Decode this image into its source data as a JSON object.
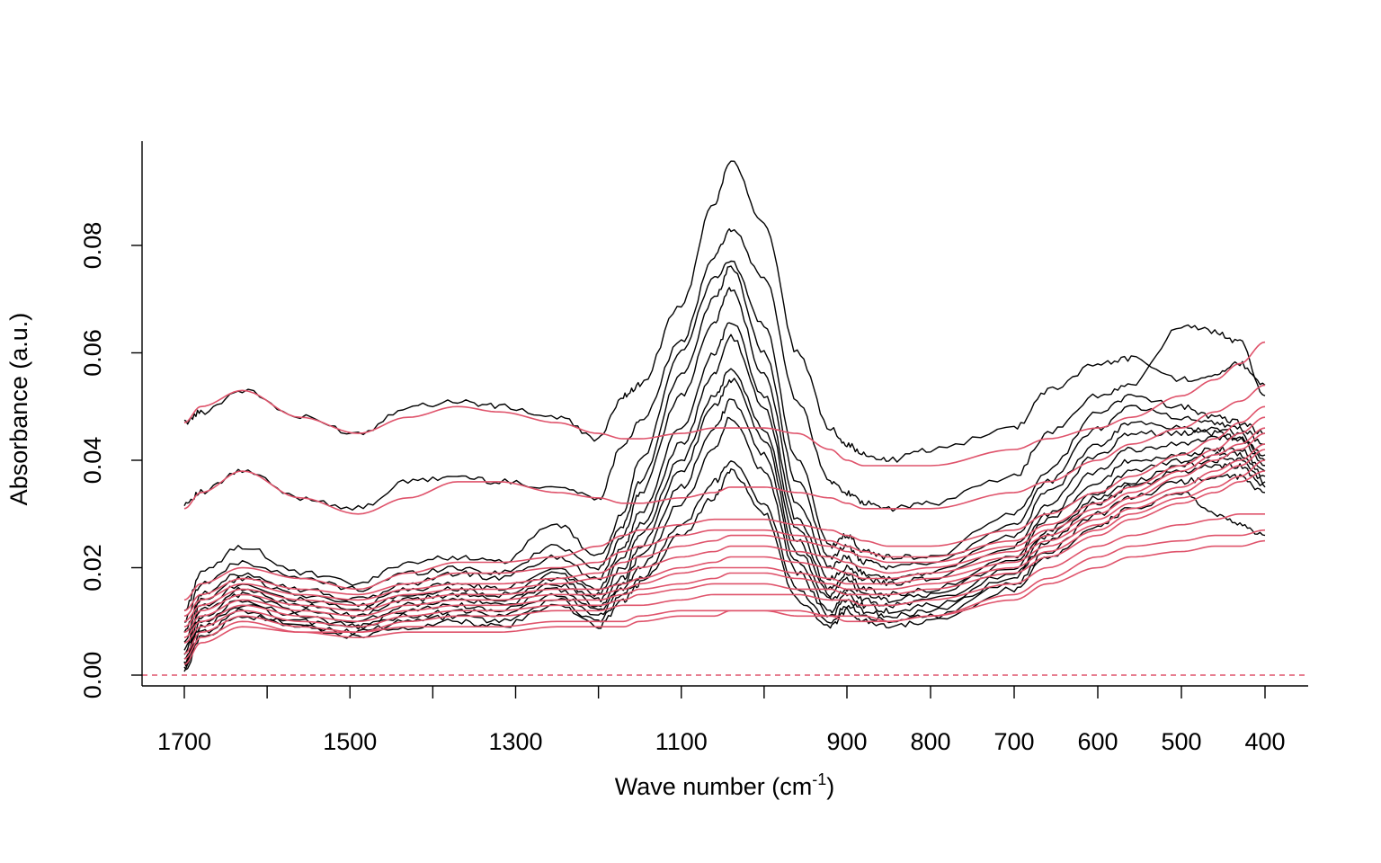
{
  "chart_data": {
    "type": "line",
    "xlabel": {
      "main": "Wave number (cm",
      "sup": "-1",
      "close": ")"
    },
    "ylabel": "Absorbance (a.u.)",
    "x_reversed": true,
    "x_axis_segments": "piecewise: 1700–900 and 900–400 drawn at different scales",
    "xlim": [
      1700,
      400
    ],
    "ylim": [
      0,
      0.097
    ],
    "x_ticks": [
      1700,
      1500,
      1300,
      1100,
      900,
      800,
      700,
      600,
      500,
      400
    ],
    "x_tick_labels": [
      "1700",
      "1500",
      "1300",
      "1100",
      "900",
      "800",
      "700",
      "600",
      "500",
      "400"
    ],
    "x_minor_ticks": [
      1600,
      1400,
      1200,
      1000
    ],
    "y_ticks": [
      0.0,
      0.02,
      0.04,
      0.06,
      0.08
    ],
    "y_tick_labels": [
      "0.00",
      "0.02",
      "0.04",
      "0.06",
      "0.08"
    ],
    "reference_line": {
      "y": 0.0,
      "style": "dashed",
      "color": "#DF536B"
    },
    "colors": {
      "spectra": "#000000",
      "baselines": "#DF536B"
    },
    "anchor_x": [
      1700,
      1680,
      1630,
      1560,
      1490,
      1430,
      1370,
      1320,
      1250,
      1200,
      1170,
      1150,
      1100,
      1060,
      1040,
      1000,
      960,
      920,
      900,
      880,
      850,
      800,
      700,
      660,
      600,
      560,
      500,
      460,
      430,
      400
    ],
    "series_spectra": [
      {
        "values": [
          0.047,
          0.049,
          0.053,
          0.048,
          0.045,
          0.05,
          0.051,
          0.05,
          0.048,
          0.044,
          0.052,
          0.054,
          0.069,
          0.088,
          0.096,
          0.084,
          0.06,
          0.046,
          0.043,
          0.041,
          0.04,
          0.042,
          0.046,
          0.053,
          0.058,
          0.059,
          0.055,
          0.056,
          0.058,
          0.054
        ]
      },
      {
        "values": [
          0.032,
          0.034,
          0.038,
          0.033,
          0.031,
          0.036,
          0.037,
          0.036,
          0.035,
          0.033,
          0.043,
          0.047,
          0.062,
          0.078,
          0.083,
          0.074,
          0.051,
          0.036,
          0.034,
          0.032,
          0.031,
          0.032,
          0.037,
          0.045,
          0.052,
          0.054,
          0.065,
          0.064,
          0.062,
          0.052
        ]
      },
      {
        "values": [
          0.012,
          0.019,
          0.024,
          0.019,
          0.017,
          0.021,
          0.022,
          0.021,
          0.028,
          0.022,
          0.03,
          0.04,
          0.06,
          0.074,
          0.077,
          0.065,
          0.04,
          0.024,
          0.026,
          0.023,
          0.022,
          0.022,
          0.03,
          0.038,
          0.049,
          0.052,
          0.05,
          0.048,
          0.047,
          0.045
        ]
      },
      {
        "values": [
          0.01,
          0.017,
          0.021,
          0.018,
          0.016,
          0.019,
          0.02,
          0.019,
          0.024,
          0.02,
          0.028,
          0.036,
          0.056,
          0.07,
          0.076,
          0.06,
          0.036,
          0.022,
          0.024,
          0.021,
          0.02,
          0.021,
          0.028,
          0.036,
          0.046,
          0.05,
          0.048,
          0.047,
          0.046,
          0.043
        ]
      },
      {
        "values": [
          0.008,
          0.015,
          0.019,
          0.016,
          0.014,
          0.017,
          0.019,
          0.018,
          0.022,
          0.018,
          0.026,
          0.034,
          0.052,
          0.066,
          0.072,
          0.056,
          0.032,
          0.02,
          0.022,
          0.019,
          0.018,
          0.019,
          0.026,
          0.034,
          0.043,
          0.047,
          0.046,
          0.045,
          0.044,
          0.041
        ]
      },
      {
        "values": [
          0.006,
          0.014,
          0.018,
          0.015,
          0.013,
          0.016,
          0.017,
          0.016,
          0.02,
          0.016,
          0.024,
          0.03,
          0.046,
          0.06,
          0.066,
          0.052,
          0.029,
          0.018,
          0.02,
          0.018,
          0.017,
          0.018,
          0.024,
          0.032,
          0.041,
          0.045,
          0.045,
          0.046,
          0.045,
          0.04
        ]
      },
      {
        "values": [
          0.005,
          0.013,
          0.017,
          0.014,
          0.012,
          0.015,
          0.016,
          0.015,
          0.019,
          0.015,
          0.022,
          0.028,
          0.043,
          0.056,
          0.063,
          0.05,
          0.027,
          0.016,
          0.019,
          0.016,
          0.015,
          0.016,
          0.022,
          0.03,
          0.038,
          0.042,
          0.043,
          0.044,
          0.044,
          0.039
        ]
      },
      {
        "values": [
          0.004,
          0.012,
          0.016,
          0.013,
          0.011,
          0.014,
          0.015,
          0.014,
          0.018,
          0.014,
          0.02,
          0.026,
          0.04,
          0.052,
          0.057,
          0.046,
          0.025,
          0.015,
          0.018,
          0.015,
          0.014,
          0.015,
          0.021,
          0.029,
          0.036,
          0.04,
          0.041,
          0.042,
          0.042,
          0.038
        ]
      },
      {
        "values": [
          0.003,
          0.011,
          0.015,
          0.012,
          0.01,
          0.013,
          0.014,
          0.013,
          0.017,
          0.013,
          0.018,
          0.024,
          0.038,
          0.05,
          0.055,
          0.044,
          0.023,
          0.014,
          0.016,
          0.014,
          0.013,
          0.014,
          0.02,
          0.027,
          0.034,
          0.038,
          0.04,
          0.041,
          0.041,
          0.037
        ]
      },
      {
        "values": [
          0.002,
          0.01,
          0.014,
          0.011,
          0.009,
          0.012,
          0.013,
          0.012,
          0.016,
          0.012,
          0.017,
          0.022,
          0.035,
          0.046,
          0.051,
          0.041,
          0.021,
          0.012,
          0.015,
          0.013,
          0.012,
          0.013,
          0.019,
          0.026,
          0.033,
          0.036,
          0.039,
          0.04,
          0.04,
          0.036
        ]
      },
      {
        "values": [
          0.002,
          0.009,
          0.013,
          0.01,
          0.009,
          0.011,
          0.012,
          0.011,
          0.015,
          0.011,
          0.016,
          0.02,
          0.032,
          0.042,
          0.048,
          0.038,
          0.019,
          0.011,
          0.014,
          0.012,
          0.011,
          0.012,
          0.018,
          0.025,
          0.032,
          0.035,
          0.038,
          0.039,
          0.039,
          0.035
        ]
      },
      {
        "values": [
          0.001,
          0.008,
          0.012,
          0.009,
          0.008,
          0.01,
          0.011,
          0.01,
          0.014,
          0.01,
          0.015,
          0.018,
          0.028,
          0.036,
          0.04,
          0.032,
          0.016,
          0.01,
          0.013,
          0.011,
          0.01,
          0.011,
          0.017,
          0.023,
          0.03,
          0.033,
          0.036,
          0.037,
          0.037,
          0.034
        ]
      },
      {
        "values": [
          0.001,
          0.007,
          0.011,
          0.009,
          0.007,
          0.009,
          0.01,
          0.009,
          0.013,
          0.009,
          0.014,
          0.017,
          0.026,
          0.033,
          0.038,
          0.03,
          0.014,
          0.009,
          0.012,
          0.01,
          0.009,
          0.01,
          0.016,
          0.022,
          0.028,
          0.031,
          0.034,
          0.03,
          0.028,
          0.026
        ]
      }
    ],
    "series_baselines": [
      {
        "values": [
          0.047,
          0.05,
          0.053,
          0.048,
          0.045,
          0.048,
          0.05,
          0.049,
          0.047,
          0.045,
          0.044,
          0.044,
          0.045,
          0.046,
          0.046,
          0.046,
          0.045,
          0.042,
          0.04,
          0.039,
          0.039,
          0.039,
          0.042,
          0.044,
          0.046,
          0.048,
          0.052,
          0.055,
          0.058,
          0.062
        ]
      },
      {
        "values": [
          0.031,
          0.034,
          0.038,
          0.033,
          0.03,
          0.033,
          0.036,
          0.036,
          0.034,
          0.033,
          0.032,
          0.032,
          0.033,
          0.034,
          0.035,
          0.035,
          0.034,
          0.033,
          0.032,
          0.031,
          0.031,
          0.031,
          0.034,
          0.036,
          0.04,
          0.043,
          0.046,
          0.049,
          0.051,
          0.054
        ]
      },
      {
        "values": [
          0.014,
          0.017,
          0.02,
          0.018,
          0.016,
          0.019,
          0.021,
          0.021,
          0.022,
          0.024,
          0.026,
          0.027,
          0.028,
          0.029,
          0.029,
          0.029,
          0.028,
          0.027,
          0.026,
          0.025,
          0.024,
          0.024,
          0.027,
          0.03,
          0.034,
          0.037,
          0.041,
          0.044,
          0.047,
          0.05
        ]
      },
      {
        "values": [
          0.012,
          0.015,
          0.018,
          0.016,
          0.015,
          0.017,
          0.019,
          0.019,
          0.02,
          0.021,
          0.023,
          0.024,
          0.026,
          0.027,
          0.027,
          0.027,
          0.026,
          0.025,
          0.024,
          0.023,
          0.022,
          0.022,
          0.025,
          0.028,
          0.032,
          0.035,
          0.039,
          0.042,
          0.045,
          0.048
        ]
      },
      {
        "values": [
          0.011,
          0.014,
          0.017,
          0.015,
          0.014,
          0.016,
          0.017,
          0.017,
          0.018,
          0.019,
          0.021,
          0.022,
          0.024,
          0.025,
          0.026,
          0.026,
          0.025,
          0.024,
          0.023,
          0.022,
          0.021,
          0.021,
          0.024,
          0.027,
          0.031,
          0.034,
          0.038,
          0.041,
          0.043,
          0.046
        ]
      },
      {
        "values": [
          0.01,
          0.013,
          0.016,
          0.014,
          0.013,
          0.015,
          0.016,
          0.016,
          0.017,
          0.018,
          0.019,
          0.02,
          0.022,
          0.023,
          0.024,
          0.024,
          0.023,
          0.022,
          0.021,
          0.02,
          0.019,
          0.02,
          0.023,
          0.026,
          0.03,
          0.033,
          0.037,
          0.04,
          0.042,
          0.045
        ]
      },
      {
        "values": [
          0.009,
          0.012,
          0.015,
          0.013,
          0.012,
          0.014,
          0.015,
          0.015,
          0.016,
          0.016,
          0.017,
          0.018,
          0.02,
          0.021,
          0.022,
          0.022,
          0.021,
          0.02,
          0.019,
          0.018,
          0.018,
          0.019,
          0.022,
          0.025,
          0.029,
          0.032,
          0.035,
          0.038,
          0.04,
          0.043
        ]
      },
      {
        "values": [
          0.008,
          0.011,
          0.014,
          0.012,
          0.011,
          0.013,
          0.014,
          0.014,
          0.015,
          0.015,
          0.016,
          0.017,
          0.019,
          0.02,
          0.02,
          0.02,
          0.019,
          0.018,
          0.017,
          0.017,
          0.017,
          0.018,
          0.021,
          0.024,
          0.028,
          0.031,
          0.034,
          0.037,
          0.039,
          0.042
        ]
      },
      {
        "values": [
          0.007,
          0.01,
          0.013,
          0.011,
          0.01,
          0.012,
          0.013,
          0.013,
          0.014,
          0.014,
          0.015,
          0.016,
          0.017,
          0.018,
          0.019,
          0.019,
          0.018,
          0.017,
          0.016,
          0.016,
          0.016,
          0.017,
          0.02,
          0.023,
          0.027,
          0.03,
          0.033,
          0.035,
          0.037,
          0.04
        ]
      },
      {
        "values": [
          0.006,
          0.009,
          0.012,
          0.01,
          0.009,
          0.011,
          0.012,
          0.012,
          0.013,
          0.013,
          0.014,
          0.015,
          0.016,
          0.017,
          0.017,
          0.017,
          0.016,
          0.016,
          0.015,
          0.015,
          0.015,
          0.016,
          0.019,
          0.022,
          0.026,
          0.029,
          0.032,
          0.034,
          0.036,
          0.038
        ]
      },
      {
        "values": [
          0.004,
          0.008,
          0.011,
          0.009,
          0.008,
          0.01,
          0.011,
          0.011,
          0.012,
          0.012,
          0.013,
          0.013,
          0.014,
          0.015,
          0.015,
          0.015,
          0.015,
          0.014,
          0.014,
          0.013,
          0.013,
          0.014,
          0.017,
          0.02,
          0.024,
          0.026,
          0.028,
          0.029,
          0.03,
          0.03
        ]
      },
      {
        "values": [
          0.003,
          0.007,
          0.01,
          0.008,
          0.008,
          0.009,
          0.009,
          0.009,
          0.01,
          0.01,
          0.01,
          0.011,
          0.012,
          0.012,
          0.012,
          0.012,
          0.012,
          0.011,
          0.011,
          0.011,
          0.01,
          0.011,
          0.015,
          0.018,
          0.022,
          0.024,
          0.025,
          0.026,
          0.026,
          0.027
        ]
      },
      {
        "values": [
          0.002,
          0.006,
          0.009,
          0.008,
          0.007,
          0.008,
          0.008,
          0.008,
          0.009,
          0.009,
          0.009,
          0.01,
          0.011,
          0.011,
          0.012,
          0.012,
          0.011,
          0.011,
          0.01,
          0.01,
          0.01,
          0.011,
          0.014,
          0.017,
          0.02,
          0.022,
          0.023,
          0.024,
          0.024,
          0.025
        ]
      }
    ]
  }
}
